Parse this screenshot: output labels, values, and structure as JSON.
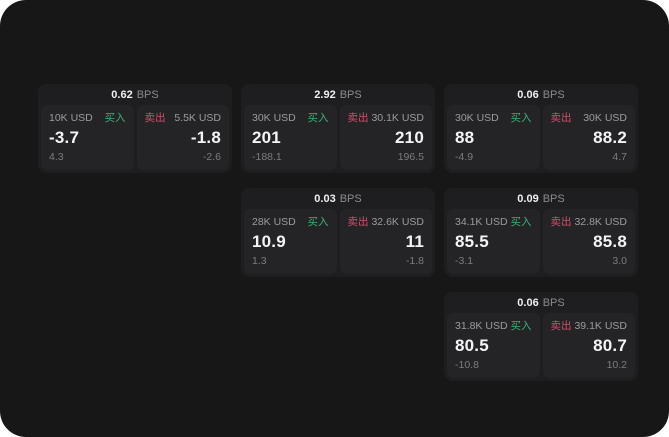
{
  "labels": {
    "bps_suffix": "BPS",
    "buy": "买入",
    "sell": "卖出"
  },
  "colors": {
    "page_background": "#ffffff",
    "canvas_background": "#171718",
    "card_background": "#1e1e20",
    "panel_background": "#242427",
    "buy_accent": "#3fae75",
    "sell_accent": "#cf4f6a",
    "primary_text": "#f4f4f5",
    "muted_text": "#9b9ba0"
  },
  "cards": [
    {
      "bps": "0.62",
      "buy": {
        "amount": "10K USD",
        "price": "-3.7",
        "delta": "4.3"
      },
      "sell": {
        "amount": "5.5K USD",
        "price": "-1.8",
        "delta": "-2.6"
      }
    },
    {
      "bps": "2.92",
      "buy": {
        "amount": "30K USD",
        "price": "201",
        "delta": "-188.1"
      },
      "sell": {
        "amount": "30.1K USD",
        "price": "210",
        "delta": "196.5"
      }
    },
    {
      "bps": "0.06",
      "buy": {
        "amount": "30K USD",
        "price": "88",
        "delta": "-4.9"
      },
      "sell": {
        "amount": "30K USD",
        "price": "88.2",
        "delta": "4.7"
      }
    },
    {
      "bps": "0.03",
      "buy": {
        "amount": "28K USD",
        "price": "10.9",
        "delta": "1.3"
      },
      "sell": {
        "amount": "32.6K USD",
        "price": "11",
        "delta": "-1.8"
      }
    },
    {
      "bps": "0.09",
      "buy": {
        "amount": "34.1K USD",
        "price": "85.5",
        "delta": "-3.1"
      },
      "sell": {
        "amount": "32.8K USD",
        "price": "85.8",
        "delta": "3.0"
      }
    },
    {
      "bps": "0.06",
      "buy": {
        "amount": "31.8K USD",
        "price": "80.5",
        "delta": "-10.8"
      },
      "sell": {
        "amount": "39.1K USD",
        "price": "80.7",
        "delta": "10.2"
      }
    }
  ]
}
